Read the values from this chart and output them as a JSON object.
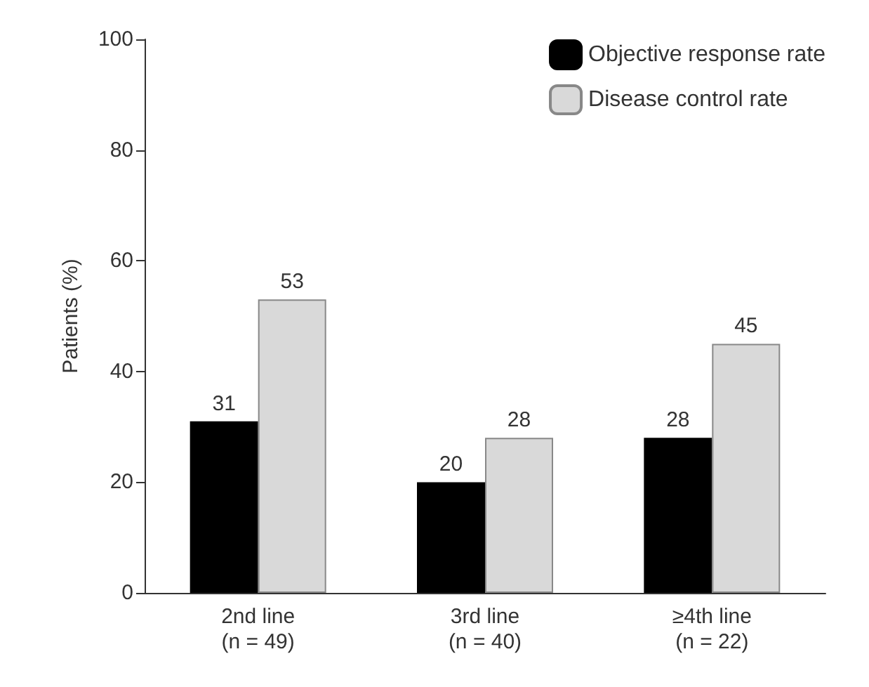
{
  "chart_data": {
    "type": "bar",
    "ylabel": "Patients (%)",
    "categories": [
      "2nd line\n(n = 49)",
      "3rd line\n(n = 40)",
      "≥4th line\n(n = 22)"
    ],
    "series": [
      {
        "name": "Objective response rate",
        "color": "#000000",
        "values": [
          31,
          20,
          28
        ]
      },
      {
        "name": "Disease control rate",
        "color": "#d9d9d9",
        "values": [
          53,
          28,
          45
        ]
      }
    ],
    "ylim": [
      0,
      100
    ],
    "yticks": [
      0,
      20,
      40,
      60,
      80,
      100
    ],
    "grid": false,
    "legend": "top right",
    "data_labels": true
  }
}
